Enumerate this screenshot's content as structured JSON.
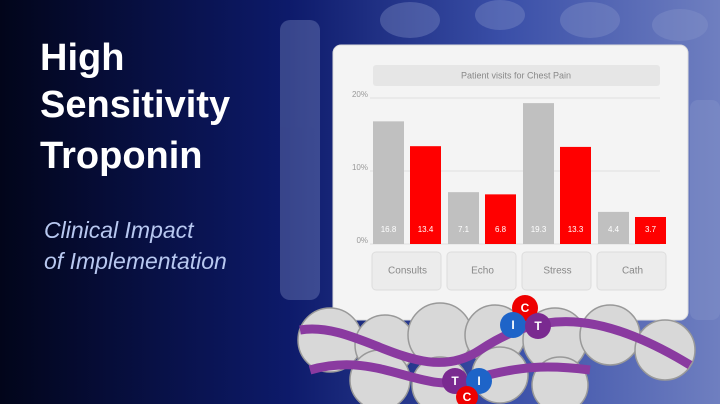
{
  "slide": {
    "title_lines": [
      "High",
      "Sensitivity",
      "Troponin"
    ],
    "subtitle_lines": [
      "Clinical Impact",
      "of Implementation"
    ],
    "molecule_labels": [
      "C",
      "I",
      "T",
      "T",
      "I",
      "C"
    ]
  },
  "chart_data": {
    "type": "bar",
    "title": "Patient visits for Chest Pain",
    "categories": [
      "Consults",
      "Echo",
      "Stress",
      "Cath"
    ],
    "series": [
      {
        "color": "#c0c0c0",
        "values": [
          16.8,
          7.1,
          19.3,
          4.4
        ]
      },
      {
        "color": "#ff0000",
        "values": [
          13.4,
          6.8,
          13.3,
          3.7
        ]
      }
    ],
    "ylim": [
      0,
      20
    ],
    "yticks": [
      {
        "value": 0,
        "label": "0%"
      },
      {
        "value": 10,
        "label": "10%"
      },
      {
        "value": 20,
        "label": "20%"
      }
    ],
    "grid": true
  }
}
